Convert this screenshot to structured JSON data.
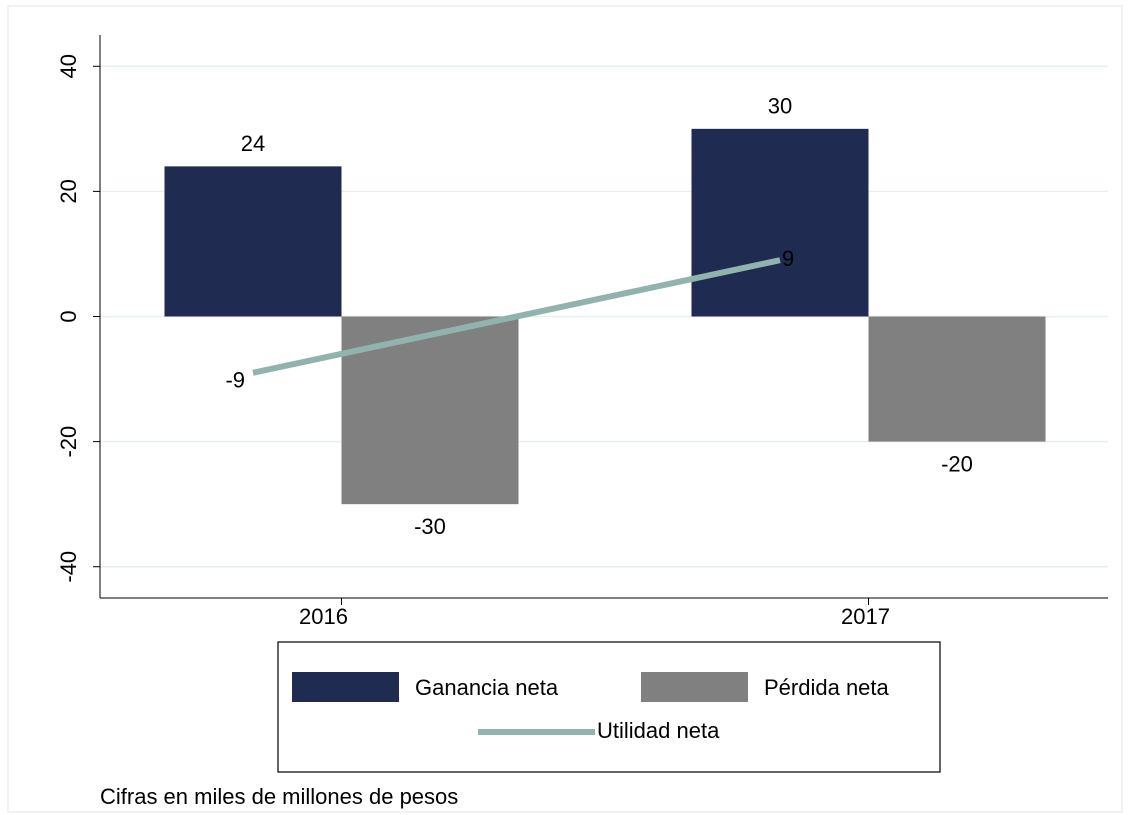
{
  "chart_data": {
    "type": "bar",
    "categories": [
      "2016",
      "2017"
    ],
    "series": [
      {
        "name": "Ganancia neta",
        "color": "#1f2b50",
        "values": [
          24,
          30
        ],
        "type": "bar"
      },
      {
        "name": "Pérdida neta",
        "color": "#808080",
        "values": [
          -30,
          -20
        ],
        "type": "bar"
      },
      {
        "name": "Utilidad neta",
        "color": "#91b3ae",
        "values": [
          -9,
          9
        ],
        "type": "line"
      }
    ],
    "ylim": [
      -45,
      45
    ],
    "yticks": [
      -40,
      -20,
      0,
      20,
      40
    ],
    "grid": true,
    "legend": "bottom",
    "note": "Cifras en miles de millones de pesos"
  }
}
